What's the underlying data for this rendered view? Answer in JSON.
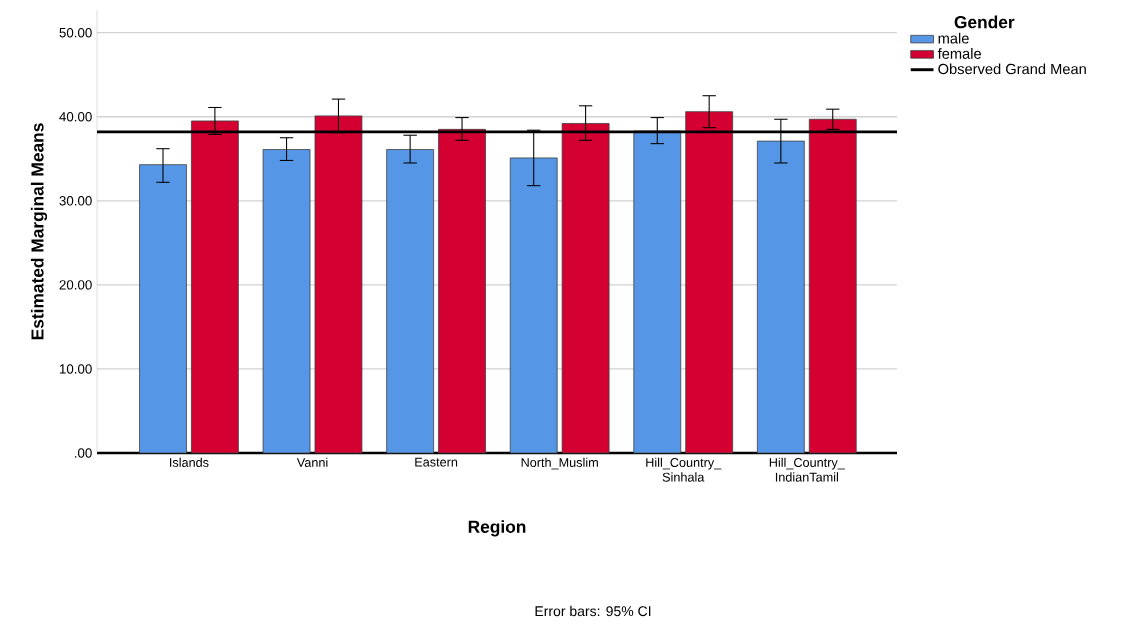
{
  "chart_data": {
    "type": "bar",
    "xlabel": "Region",
    "ylabel": "Estimated Marginal Means",
    "legend_title": "Gender",
    "categories": [
      "Islands",
      "Vanni",
      "Eastern",
      "North_Muslim",
      "Hill_Country_ Sinhala",
      "Hill_Country_ IndianTamil"
    ],
    "series": [
      {
        "name": "male",
        "color": "#5596e6",
        "values": [
          34.3,
          36.1,
          36.1,
          35.1,
          38.3,
          37.1
        ],
        "errors": [
          [
            32.2,
            36.2
          ],
          [
            34.8,
            37.5
          ],
          [
            34.5,
            37.8
          ],
          [
            31.8,
            38.4
          ],
          [
            36.8,
            39.9
          ],
          [
            34.5,
            39.7
          ]
        ]
      },
      {
        "name": "female",
        "color": "#d50032",
        "values": [
          39.5,
          40.1,
          38.5,
          39.2,
          40.6,
          39.7
        ],
        "errors": [
          [
            37.9,
            41.1
          ],
          [
            38.1,
            42.1
          ],
          [
            37.2,
            39.9
          ],
          [
            37.2,
            41.3
          ],
          [
            38.7,
            42.5
          ],
          [
            38.5,
            40.9
          ]
        ]
      }
    ],
    "ylim": [
      0,
      52.7
    ],
    "yticks": [
      {
        "value": 0,
        "label": ".00"
      },
      {
        "value": 10,
        "label": "10.00"
      },
      {
        "value": 20,
        "label": "20.00"
      },
      {
        "value": 30,
        "label": "30.00"
      },
      {
        "value": 40,
        "label": "40.00"
      },
      {
        "value": 50,
        "label": "50.00"
      }
    ],
    "ref_lines": [
      {
        "axis": "y",
        "value": 38.2,
        "label": "Observed Grand Mean",
        "color": "#000000"
      }
    ],
    "annotations": [
      "Error bars: 95% CI"
    ],
    "grid": "y",
    "legend": "top right"
  }
}
